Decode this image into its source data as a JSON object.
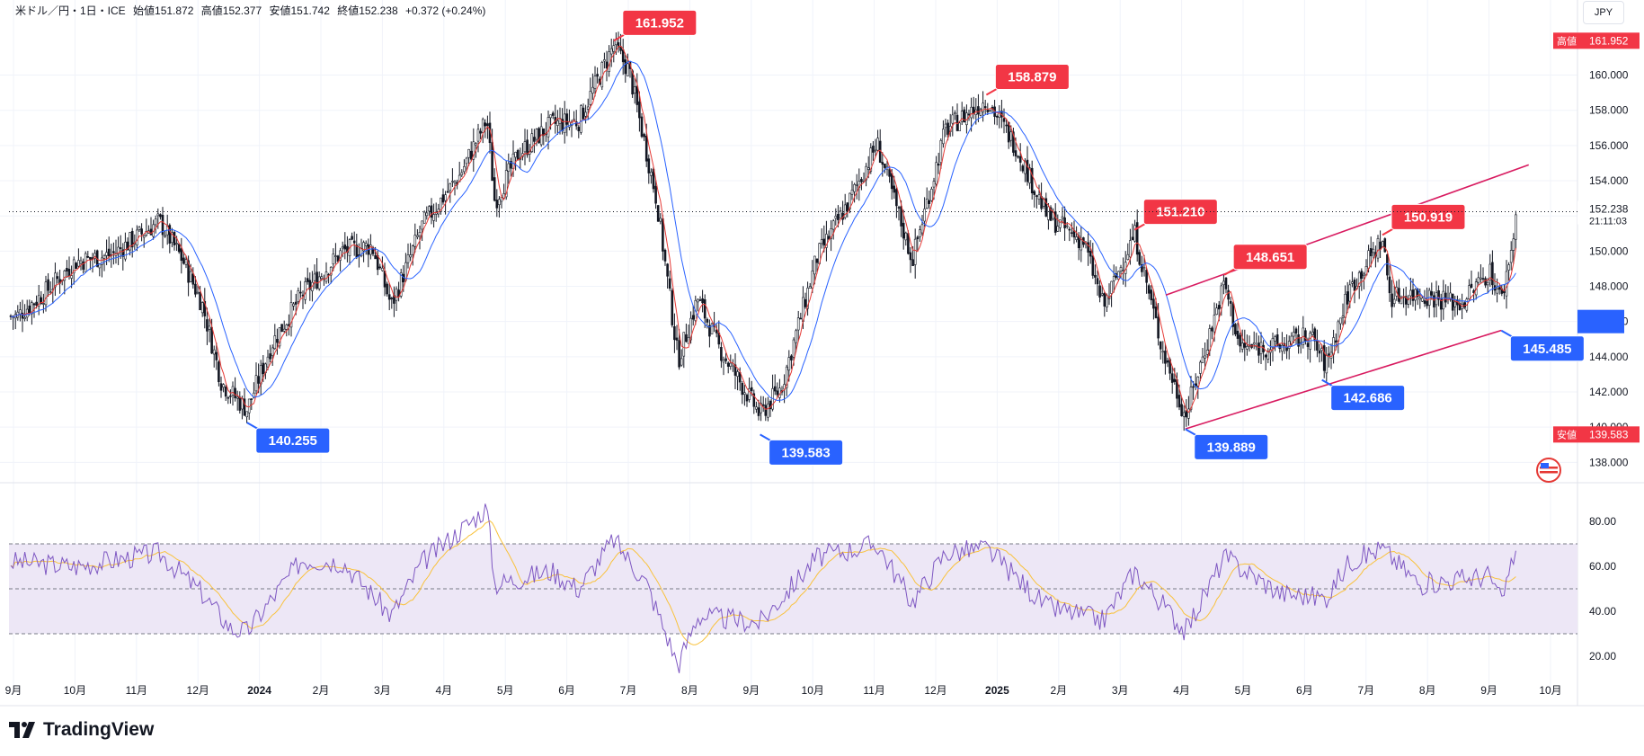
{
  "header": {
    "symbol": "米ドル／円・1日・ICE",
    "open": "始値151.872",
    "high": "高値152.377",
    "low": "安値151.742",
    "close": "終値152.238",
    "change": "+0.372 (+0.24%)"
  },
  "currency_button": "JPY",
  "brand": "TradingView",
  "colors": {
    "up": "#131722",
    "down": "#131722",
    "ma_fast": "#e53935",
    "ma_slow": "#2962ff",
    "trendline": "#d81b60",
    "rsi": "#7e57c2",
    "rsi_ma": "#f9c23c",
    "label_high": "#f23645",
    "label_low": "#2962ff",
    "rsi_band": "#ede7f6"
  },
  "chart_data": {
    "type": "candlestick",
    "price_axis_ticks": [
      "160.000",
      "158.000",
      "156.000",
      "154.000",
      "152.000",
      "150.000",
      "148.000",
      "146.000",
      "144.000",
      "142.000",
      "140.000",
      "138.000"
    ],
    "price_range": [
      137.2,
      163.5
    ],
    "time_axis_labels": [
      "9月",
      "10月",
      "11月",
      "12月",
      "2024",
      "2月",
      "3月",
      "4月",
      "5月",
      "6月",
      "7月",
      "8月",
      "9月",
      "10月",
      "11月",
      "12月",
      "2025",
      "2月",
      "3月",
      "4月",
      "5月",
      "6月",
      "7月",
      "8月",
      "9月",
      "10月"
    ],
    "close_path": [
      {
        "d": "2023-09-01",
        "v": 146.3
      },
      {
        "d": "2023-09-15",
        "v": 147.6
      },
      {
        "d": "2023-10-01",
        "v": 149.4
      },
      {
        "d": "2023-10-20",
        "v": 149.8
      },
      {
        "d": "2023-11-13",
        "v": 151.7
      },
      {
        "d": "2023-11-25",
        "v": 149.5
      },
      {
        "d": "2023-12-05",
        "v": 147.0
      },
      {
        "d": "2023-12-15",
        "v": 142.5
      },
      {
        "d": "2023-12-28",
        "v": 141.0
      },
      {
        "d": "2024-01-10",
        "v": 144.8
      },
      {
        "d": "2024-01-25",
        "v": 147.5
      },
      {
        "d": "2024-02-15",
        "v": 150.0
      },
      {
        "d": "2024-03-01",
        "v": 150.3
      },
      {
        "d": "2024-03-11",
        "v": 146.9
      },
      {
        "d": "2024-03-27",
        "v": 151.5
      },
      {
        "d": "2024-04-15",
        "v": 154.3
      },
      {
        "d": "2024-04-29",
        "v": 157.5
      },
      {
        "d": "2024-05-03",
        "v": 152.8
      },
      {
        "d": "2024-05-15",
        "v": 155.5
      },
      {
        "d": "2024-06-01",
        "v": 157.2
      },
      {
        "d": "2024-06-15",
        "v": 157.4
      },
      {
        "d": "2024-07-03",
        "v": 161.7
      },
      {
        "d": "2024-07-11",
        "v": 160.2
      },
      {
        "d": "2024-07-25",
        "v": 152.9
      },
      {
        "d": "2024-08-05",
        "v": 143.8
      },
      {
        "d": "2024-08-15",
        "v": 147.3
      },
      {
        "d": "2024-08-26",
        "v": 144.5
      },
      {
        "d": "2024-09-16",
        "v": 140.7
      },
      {
        "d": "2024-09-27",
        "v": 142.3
      },
      {
        "d": "2024-10-15",
        "v": 149.6
      },
      {
        "d": "2024-11-01",
        "v": 152.9
      },
      {
        "d": "2024-11-15",
        "v": 156.1
      },
      {
        "d": "2024-12-03",
        "v": 149.5
      },
      {
        "d": "2024-12-20",
        "v": 156.9
      },
      {
        "d": "2025-01-10",
        "v": 158.6
      },
      {
        "d": "2025-01-25",
        "v": 156.0
      },
      {
        "d": "2025-02-10",
        "v": 152.0
      },
      {
        "d": "2025-03-01",
        "v": 150.5
      },
      {
        "d": "2025-03-11",
        "v": 146.8
      },
      {
        "d": "2025-03-27",
        "v": 151.0
      },
      {
        "d": "2025-04-10",
        "v": 144.5
      },
      {
        "d": "2025-04-22",
        "v": 140.6
      },
      {
        "d": "2025-05-12",
        "v": 148.2
      },
      {
        "d": "2025-05-20",
        "v": 144.5
      },
      {
        "d": "2025-06-10",
        "v": 144.6
      },
      {
        "d": "2025-06-25",
        "v": 145.2
      },
      {
        "d": "2025-07-03",
        "v": 143.5
      },
      {
        "d": "2025-07-15",
        "v": 147.8
      },
      {
        "d": "2025-08-01",
        "v": 150.7
      },
      {
        "d": "2025-08-05",
        "v": 147.4
      },
      {
        "d": "2025-08-20",
        "v": 147.6
      },
      {
        "d": "2025-09-10",
        "v": 147.0
      },
      {
        "d": "2025-09-25",
        "v": 148.9
      },
      {
        "d": "2025-10-01",
        "v": 147.2
      },
      {
        "d": "2025-10-06",
        "v": 150.1
      },
      {
        "d": "2025-10-09",
        "v": 152.24
      }
    ],
    "annotations": [
      {
        "text": "161.952",
        "kind": "high",
        "d": "2024-07-03",
        "v": 161.952
      },
      {
        "text": "158.879",
        "kind": "high",
        "d": "2025-01-10",
        "v": 158.879
      },
      {
        "text": "151.210",
        "kind": "high",
        "d": "2025-03-27",
        "v": 151.21
      },
      {
        "text": "148.651",
        "kind": "high",
        "d": "2025-05-12",
        "v": 148.651
      },
      {
        "text": "150.919",
        "kind": "high",
        "d": "2025-08-01",
        "v": 150.919
      },
      {
        "text": "140.255",
        "kind": "low",
        "d": "2023-12-28",
        "v": 140.255
      },
      {
        "text": "139.583",
        "kind": "low",
        "d": "2024-09-16",
        "v": 139.583
      },
      {
        "text": "139.889",
        "kind": "low",
        "d": "2025-04-22",
        "v": 139.889
      },
      {
        "text": "142.686",
        "kind": "low",
        "d": "2025-07-01",
        "v": 142.686
      },
      {
        "text": "145.485",
        "kind": "low",
        "d": "2025-10-01",
        "v": 145.485
      }
    ],
    "trendlines": [
      {
        "from": {
          "d": "2025-04-22",
          "v": 139.9
        },
        "to": {
          "d": "2025-10-01",
          "v": 145.5
        }
      },
      {
        "from": {
          "d": "2025-04-12",
          "v": 147.5
        },
        "to": {
          "d": "2025-10-15",
          "v": 154.9
        }
      }
    ],
    "axis_markers": [
      {
        "label": "高値",
        "value": "161.952",
        "kind": "high"
      },
      {
        "label": "安値",
        "value": "139.583",
        "kind": "low"
      },
      {
        "label": "",
        "value": "152.238",
        "kind": "last",
        "sub": "21:11:03"
      },
      {
        "label": "",
        "value": "146.000",
        "kind": "blue"
      }
    ],
    "rsi": {
      "ticks": [
        "80.00",
        "60.00",
        "40.00",
        "20.00"
      ],
      "range": [
        10,
        90
      ],
      "levels": [
        70,
        50,
        30
      ],
      "path": [
        {
          "d": "2023-09-01",
          "v": 62
        },
        {
          "d": "2023-10-01",
          "v": 60
        },
        {
          "d": "2023-11-13",
          "v": 66
        },
        {
          "d": "2023-12-05",
          "v": 48
        },
        {
          "d": "2023-12-20",
          "v": 32
        },
        {
          "d": "2023-12-28",
          "v": 31
        },
        {
          "d": "2024-01-25",
          "v": 63
        },
        {
          "d": "2024-02-15",
          "v": 62
        },
        {
          "d": "2024-03-11",
          "v": 38
        },
        {
          "d": "2024-03-27",
          "v": 62
        },
        {
          "d": "2024-04-29",
          "v": 86
        },
        {
          "d": "2024-05-03",
          "v": 52
        },
        {
          "d": "2024-06-01",
          "v": 58
        },
        {
          "d": "2024-06-15",
          "v": 50
        },
        {
          "d": "2024-07-03",
          "v": 72
        },
        {
          "d": "2024-07-20",
          "v": 52
        },
        {
          "d": "2024-08-05",
          "v": 16
        },
        {
          "d": "2024-08-15",
          "v": 38
        },
        {
          "d": "2024-09-16",
          "v": 35
        },
        {
          "d": "2024-10-15",
          "v": 64
        },
        {
          "d": "2024-11-15",
          "v": 70
        },
        {
          "d": "2024-12-03",
          "v": 44
        },
        {
          "d": "2024-12-20",
          "v": 66
        },
        {
          "d": "2025-01-10",
          "v": 68
        },
        {
          "d": "2025-02-10",
          "v": 42
        },
        {
          "d": "2025-03-11",
          "v": 36
        },
        {
          "d": "2025-03-27",
          "v": 58
        },
        {
          "d": "2025-04-22",
          "v": 31
        },
        {
          "d": "2025-05-12",
          "v": 64
        },
        {
          "d": "2025-06-10",
          "v": 48
        },
        {
          "d": "2025-07-03",
          "v": 46
        },
        {
          "d": "2025-07-15",
          "v": 62
        },
        {
          "d": "2025-08-01",
          "v": 68
        },
        {
          "d": "2025-08-20",
          "v": 52
        },
        {
          "d": "2025-09-25",
          "v": 56
        },
        {
          "d": "2025-10-01",
          "v": 44
        },
        {
          "d": "2025-10-09",
          "v": 70
        }
      ]
    }
  }
}
